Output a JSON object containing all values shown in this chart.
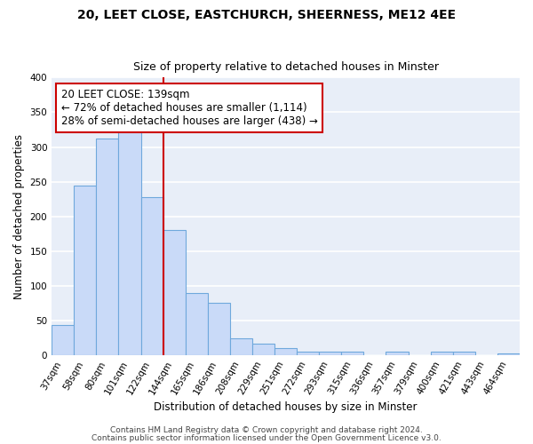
{
  "title1": "20, LEET CLOSE, EASTCHURCH, SHEERNESS, ME12 4EE",
  "title2": "Size of property relative to detached houses in Minster",
  "xlabel": "Distribution of detached houses by size in Minster",
  "ylabel": "Number of detached properties",
  "bin_labels": [
    "37sqm",
    "58sqm",
    "80sqm",
    "101sqm",
    "122sqm",
    "144sqm",
    "165sqm",
    "186sqm",
    "208sqm",
    "229sqm",
    "251sqm",
    "272sqm",
    "293sqm",
    "315sqm",
    "336sqm",
    "357sqm",
    "379sqm",
    "400sqm",
    "421sqm",
    "443sqm",
    "464sqm"
  ],
  "bar_heights": [
    43,
    245,
    312,
    335,
    228,
    180,
    90,
    75,
    25,
    17,
    10,
    5,
    5,
    5,
    0,
    5,
    0,
    5,
    5,
    0,
    3
  ],
  "bar_color": "#c9daf8",
  "bar_edge_color": "#6fa8dc",
  "vline_x": 4.5,
  "vline_color": "#cc0000",
  "annotation_box_text": "20 LEET CLOSE: 139sqm\n← 72% of detached houses are smaller (1,114)\n28% of semi-detached houses are larger (438) →",
  "annotation_box_color": "#cc0000",
  "ylim": [
    0,
    400
  ],
  "yticks": [
    0,
    50,
    100,
    150,
    200,
    250,
    300,
    350,
    400
  ],
  "footer1": "Contains HM Land Registry data © Crown copyright and database right 2024.",
  "footer2": "Contains public sector information licensed under the Open Government Licence v3.0.",
  "fig_background_color": "#ffffff",
  "ax_background_color": "#e8eef8",
  "grid_color": "#ffffff",
  "title_fontsize": 10,
  "subtitle_fontsize": 9,
  "axis_label_fontsize": 8.5,
  "tick_fontsize": 7.5,
  "annotation_fontsize": 8.5,
  "footer_fontsize": 6.5
}
